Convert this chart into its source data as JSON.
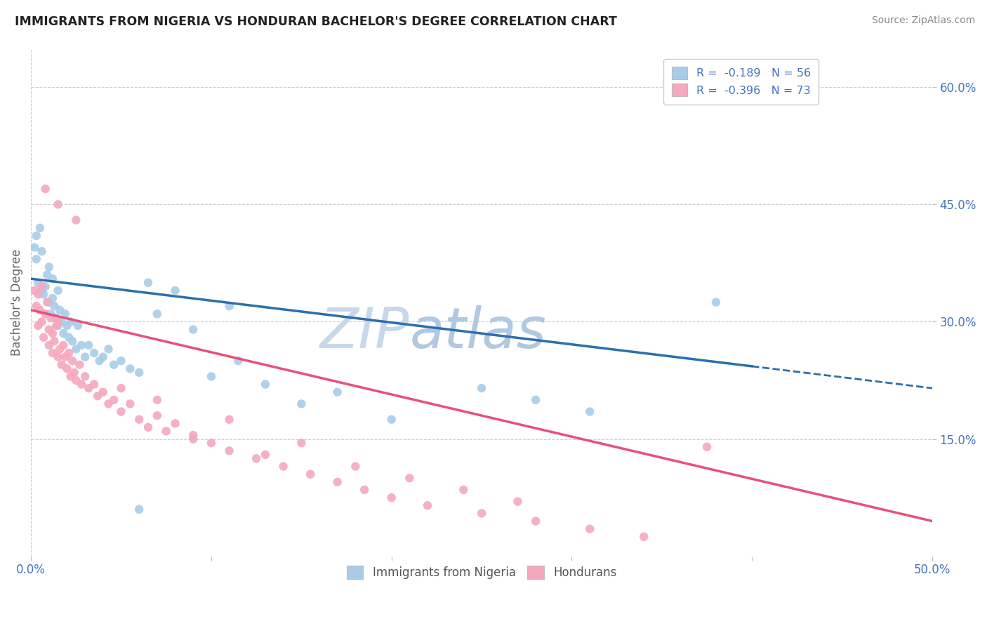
{
  "title": "IMMIGRANTS FROM NIGERIA VS HONDURAN BACHELOR'S DEGREE CORRELATION CHART",
  "source": "Source: ZipAtlas.com",
  "ylabel": "Bachelor's Degree",
  "xlim": [
    0.0,
    0.5
  ],
  "ylim": [
    0.0,
    0.65
  ],
  "ytick_positions": [
    0.15,
    0.3,
    0.45,
    0.6
  ],
  "ytick_labels": [
    "15.0%",
    "30.0%",
    "45.0%",
    "60.0%"
  ],
  "watermark_top": "ZIP",
  "watermark_bot": "atlas",
  "legend1_label": "R =  -0.189   N = 56",
  "legend2_label": "R =  -0.396   N = 73",
  "legend_bottom_label1": "Immigrants from Nigeria",
  "legend_bottom_label2": "Hondurans",
  "blue_color": "#a8cce8",
  "pink_color": "#f4a8be",
  "blue_line_color": "#2c6fad",
  "pink_line_color": "#e8507a",
  "background_color": "#ffffff",
  "grid_color": "#cccccc",
  "axis_label_color": "#4472c4",
  "watermark_color": "#d8e8f4",
  "blue_line_x0": 0.0,
  "blue_line_y0": 0.355,
  "blue_line_x1": 0.5,
  "blue_line_y1": 0.215,
  "pink_line_x0": 0.0,
  "pink_line_y0": 0.315,
  "pink_line_x1": 0.5,
  "pink_line_y1": 0.045,
  "nigeria_x": [
    0.002,
    0.003,
    0.003,
    0.004,
    0.005,
    0.006,
    0.006,
    0.007,
    0.008,
    0.009,
    0.01,
    0.01,
    0.011,
    0.012,
    0.012,
    0.013,
    0.014,
    0.015,
    0.015,
    0.016,
    0.017,
    0.018,
    0.019,
    0.02,
    0.021,
    0.022,
    0.023,
    0.025,
    0.026,
    0.028,
    0.03,
    0.032,
    0.035,
    0.038,
    0.04,
    0.043,
    0.046,
    0.05,
    0.055,
    0.06,
    0.065,
    0.07,
    0.08,
    0.09,
    0.1,
    0.115,
    0.13,
    0.15,
    0.17,
    0.2,
    0.25,
    0.28,
    0.31,
    0.38,
    0.11,
    0.06
  ],
  "nigeria_y": [
    0.395,
    0.41,
    0.38,
    0.35,
    0.42,
    0.34,
    0.39,
    0.335,
    0.345,
    0.36,
    0.325,
    0.37,
    0.31,
    0.33,
    0.355,
    0.32,
    0.305,
    0.295,
    0.34,
    0.315,
    0.3,
    0.285,
    0.31,
    0.295,
    0.28,
    0.3,
    0.275,
    0.265,
    0.295,
    0.27,
    0.255,
    0.27,
    0.26,
    0.25,
    0.255,
    0.265,
    0.245,
    0.25,
    0.24,
    0.235,
    0.35,
    0.31,
    0.34,
    0.29,
    0.23,
    0.25,
    0.22,
    0.195,
    0.21,
    0.175,
    0.215,
    0.2,
    0.185,
    0.325,
    0.32,
    0.06
  ],
  "honduras_x": [
    0.002,
    0.003,
    0.004,
    0.004,
    0.005,
    0.006,
    0.006,
    0.007,
    0.008,
    0.009,
    0.01,
    0.01,
    0.011,
    0.012,
    0.012,
    0.013,
    0.014,
    0.015,
    0.015,
    0.016,
    0.017,
    0.018,
    0.019,
    0.02,
    0.021,
    0.022,
    0.023,
    0.024,
    0.025,
    0.027,
    0.028,
    0.03,
    0.032,
    0.035,
    0.037,
    0.04,
    0.043,
    0.046,
    0.05,
    0.055,
    0.06,
    0.065,
    0.07,
    0.075,
    0.08,
    0.09,
    0.1,
    0.11,
    0.125,
    0.14,
    0.155,
    0.17,
    0.185,
    0.2,
    0.22,
    0.25,
    0.28,
    0.31,
    0.34,
    0.375,
    0.05,
    0.07,
    0.09,
    0.11,
    0.13,
    0.15,
    0.18,
    0.21,
    0.24,
    0.27,
    0.008,
    0.015,
    0.025
  ],
  "honduras_y": [
    0.34,
    0.32,
    0.335,
    0.295,
    0.315,
    0.3,
    0.345,
    0.28,
    0.31,
    0.325,
    0.29,
    0.27,
    0.305,
    0.285,
    0.26,
    0.275,
    0.295,
    0.255,
    0.3,
    0.265,
    0.245,
    0.27,
    0.255,
    0.24,
    0.26,
    0.23,
    0.25,
    0.235,
    0.225,
    0.245,
    0.22,
    0.23,
    0.215,
    0.22,
    0.205,
    0.21,
    0.195,
    0.2,
    0.185,
    0.195,
    0.175,
    0.165,
    0.18,
    0.16,
    0.17,
    0.15,
    0.145,
    0.135,
    0.125,
    0.115,
    0.105,
    0.095,
    0.085,
    0.075,
    0.065,
    0.055,
    0.045,
    0.035,
    0.025,
    0.14,
    0.215,
    0.2,
    0.155,
    0.175,
    0.13,
    0.145,
    0.115,
    0.1,
    0.085,
    0.07,
    0.47,
    0.45,
    0.43
  ]
}
